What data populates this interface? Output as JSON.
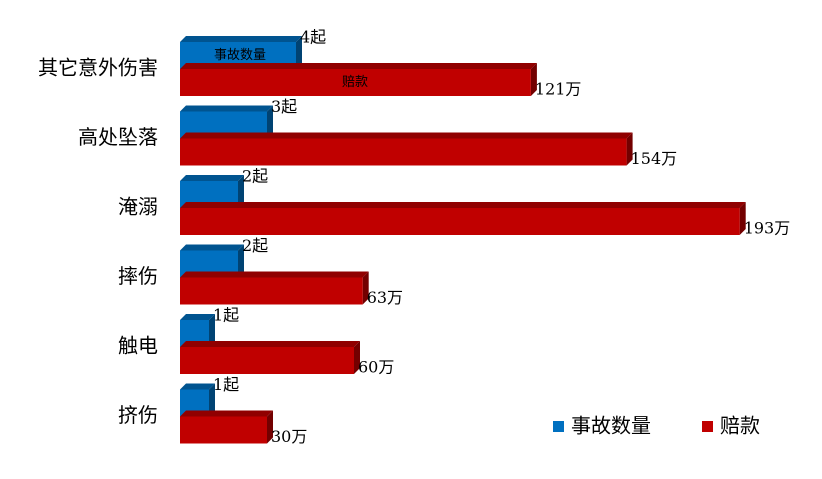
{
  "chart_data": {
    "type": "bar",
    "orientation": "horizontal",
    "categories": [
      "其它意外伤害",
      "高处坠落",
      "淹溺",
      "摔伤",
      "触电",
      "挤伤"
    ],
    "series": [
      {
        "name": "事故数量",
        "color": "#0070c0",
        "axis": "x2",
        "values": [
          4,
          3,
          2,
          2,
          1,
          1
        ],
        "value_labels": [
          "4起",
          "3起",
          "2起",
          "2起",
          "1起",
          "1起"
        ]
      },
      {
        "name": "赔款",
        "color": "#c00000",
        "values": [
          121,
          154,
          193,
          63,
          60,
          30
        ],
        "value_labels": [
          "121万",
          "154万",
          "193万",
          "63万",
          "60万",
          "30万"
        ]
      }
    ],
    "xlim": [
      0,
      200
    ],
    "x2lim": [
      0,
      20
    ],
    "legend": "bottom-right"
  }
}
